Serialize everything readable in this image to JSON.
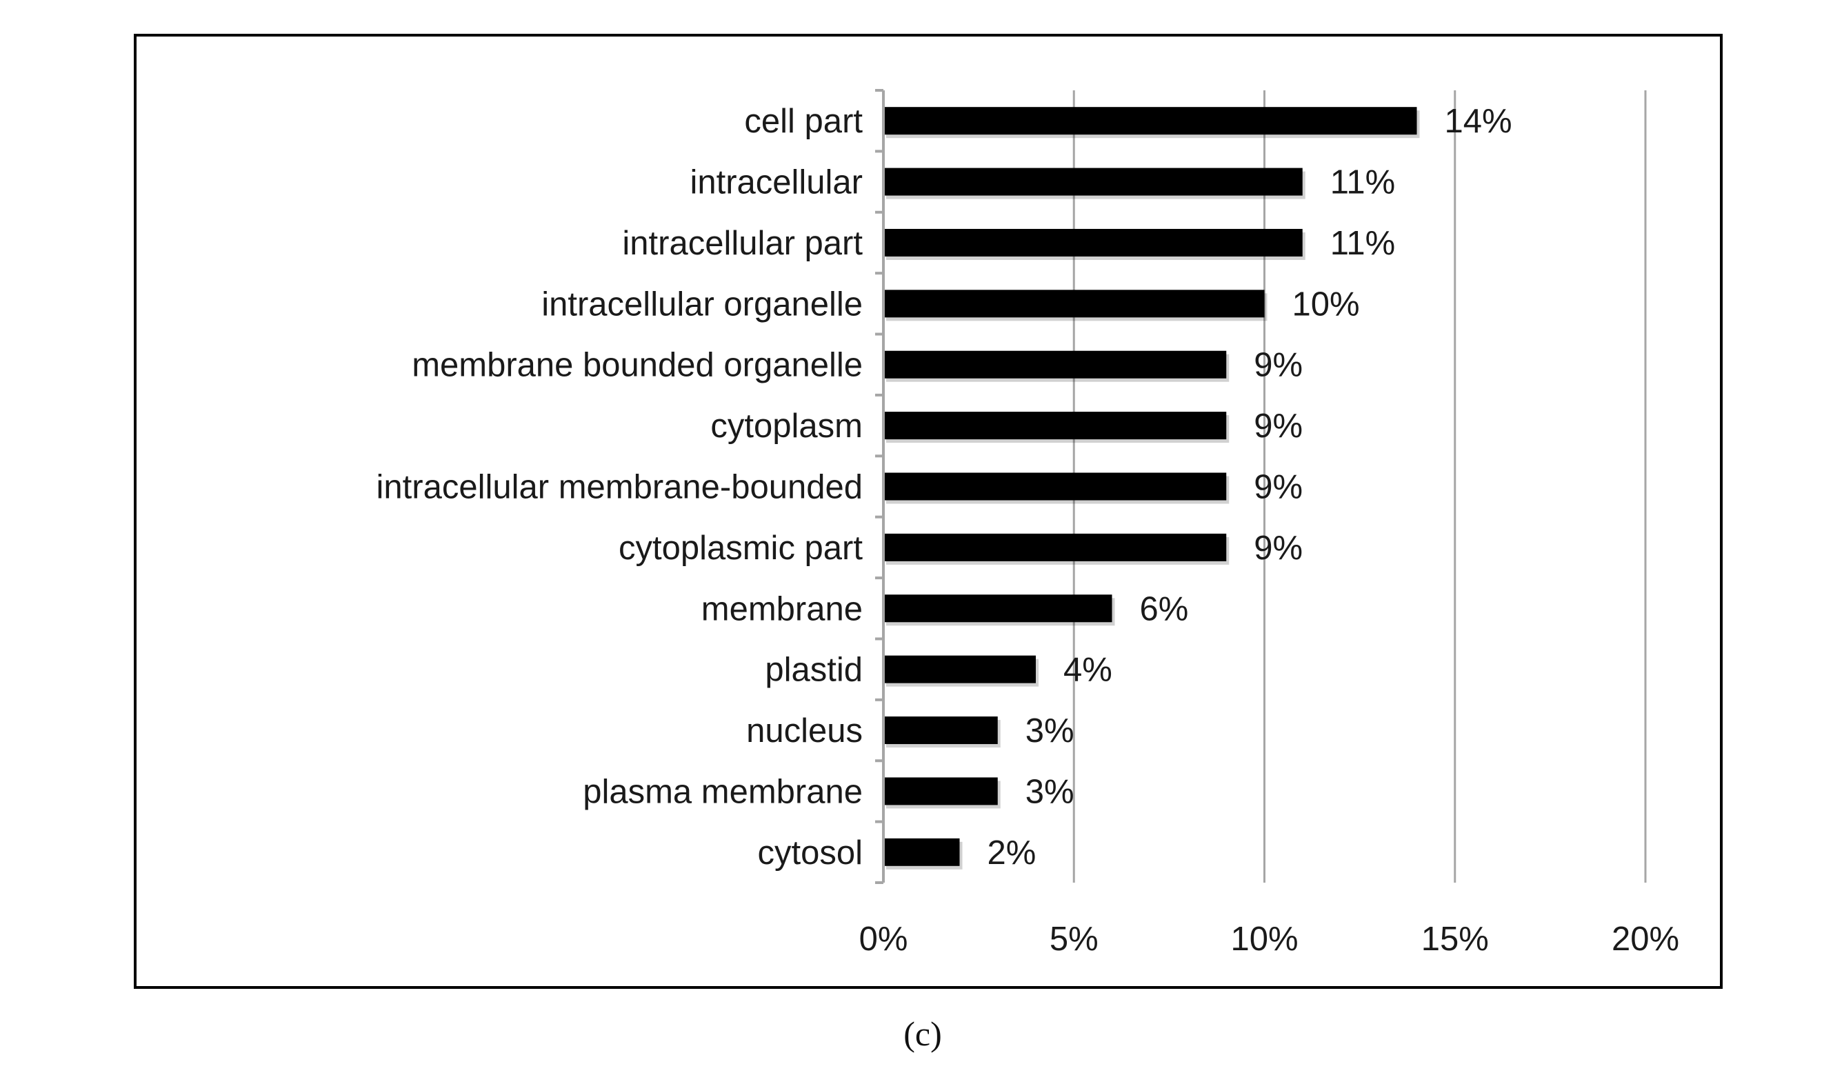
{
  "caption": "(c)",
  "colors": {
    "bar": "#000000",
    "grid": "#a6a6a6",
    "frame": "#000000",
    "text": "#1a1a1a"
  },
  "chart_data": {
    "type": "bar",
    "orientation": "horizontal",
    "title": "",
    "xlabel": "",
    "ylabel": "",
    "categories": [
      "cell part",
      "intracellular",
      "intracellular part",
      "intracellular organelle",
      "membrane bounded organelle",
      "cytoplasm",
      "intracellular membrane-bounded",
      "cytoplasmic part",
      "membrane",
      "plastid",
      "nucleus",
      "plasma membrane",
      "cytosol"
    ],
    "values": [
      14,
      11,
      11,
      10,
      9,
      9,
      9,
      9,
      6,
      4,
      3,
      3,
      2
    ],
    "data_labels": [
      "14%",
      "11%",
      "11%",
      "10%",
      "9%",
      "9%",
      "9%",
      "9%",
      "6%",
      "4%",
      "3%",
      "3%",
      "2%"
    ],
    "xlim": [
      0,
      20
    ],
    "xticks": [
      0,
      5,
      10,
      15,
      20
    ],
    "xtick_labels": [
      "0%",
      "5%",
      "10%",
      "15%",
      "20%"
    ],
    "grid": true,
    "legend": "none"
  }
}
